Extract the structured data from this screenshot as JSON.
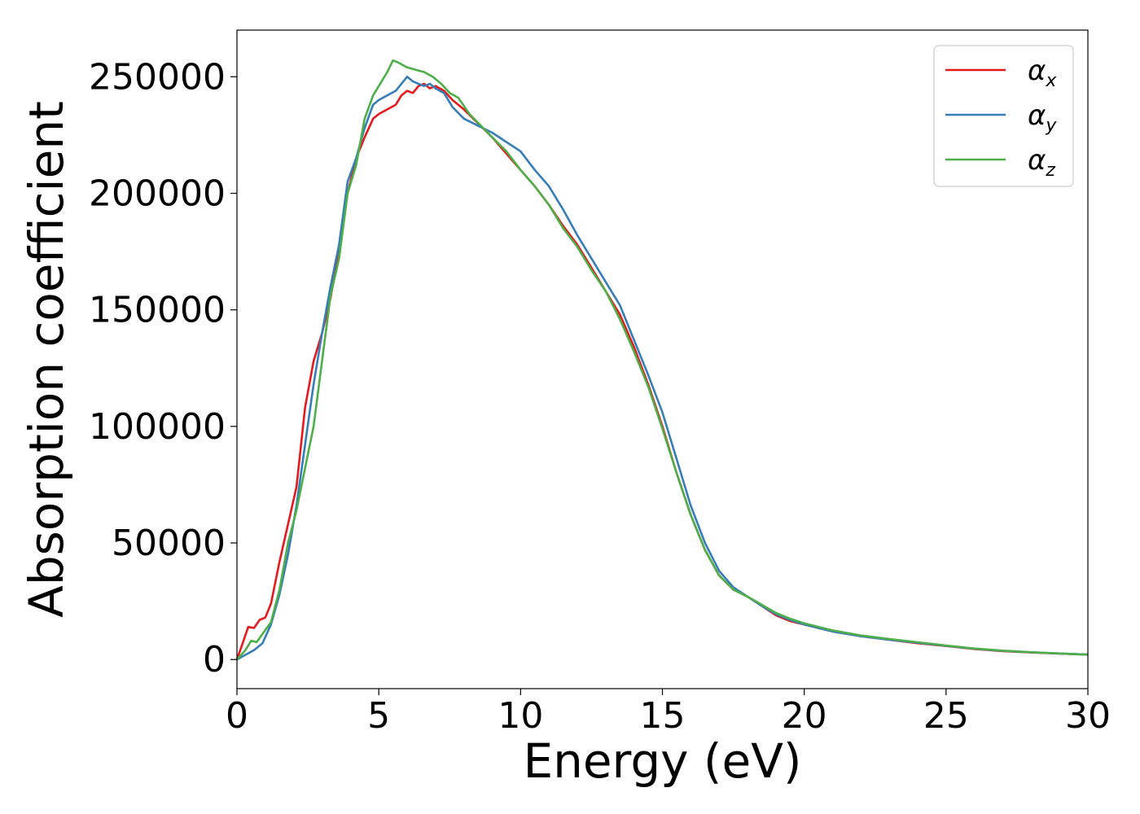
{
  "chart_data": {
    "type": "line",
    "xlabel": "Energy (eV)",
    "ylabel": "Absorption coefficient",
    "xlim": [
      0,
      30
    ],
    "ylim": [
      -12500,
      270000
    ],
    "xticks": [
      0,
      5,
      10,
      15,
      20,
      25,
      30
    ],
    "yticks": [
      0,
      50000,
      100000,
      150000,
      200000,
      250000
    ],
    "grid": false,
    "legend_position": "top-right",
    "series": [
      {
        "name": "α_x",
        "label_main": "α",
        "label_sub": "x",
        "color": "#e41a1c",
        "x": [
          0,
          0.2,
          0.4,
          0.6,
          0.8,
          1.0,
          1.2,
          1.5,
          1.8,
          2.1,
          2.4,
          2.7,
          3.0,
          3.3,
          3.6,
          3.9,
          4.2,
          4.5,
          4.8,
          5.0,
          5.3,
          5.6,
          5.8,
          6.0,
          6.2,
          6.4,
          6.6,
          6.8,
          7.0,
          7.3,
          7.6,
          8.0,
          8.5,
          9.0,
          9.5,
          10.0,
          10.5,
          11.0,
          11.5,
          12.0,
          12.5,
          13.0,
          13.5,
          14.0,
          14.5,
          15.0,
          15.5,
          16.0,
          16.5,
          17.0,
          17.5,
          18.0,
          18.5,
          19.0,
          19.5,
          20.0,
          21.0,
          22.0,
          23.0,
          24.0,
          25.0,
          26.0,
          27.0,
          28.0,
          29.0,
          30.0
        ],
        "y": [
          0,
          7000,
          14000,
          13500,
          17000,
          18000,
          24000,
          42000,
          58000,
          74000,
          108000,
          128000,
          140000,
          155000,
          176000,
          200000,
          215000,
          224000,
          232000,
          234000,
          236000,
          238000,
          242000,
          244000,
          243000,
          246000,
          247000,
          245000,
          246000,
          244000,
          240000,
          236000,
          230000,
          224000,
          217000,
          210000,
          203000,
          195000,
          186000,
          178000,
          168000,
          158000,
          148000,
          134000,
          118000,
          100000,
          80000,
          62000,
          47000,
          36000,
          30000,
          27000,
          23000,
          19000,
          16500,
          15000,
          12000,
          10000,
          8500,
          7000,
          5800,
          4500,
          3600,
          3000,
          2500,
          2100
        ]
      },
      {
        "name": "α_y",
        "label_main": "α",
        "label_sub": "y",
        "color": "#377eb8",
        "x": [
          0,
          0.3,
          0.6,
          0.9,
          1.2,
          1.5,
          1.8,
          2.1,
          2.4,
          2.7,
          3.0,
          3.3,
          3.6,
          3.9,
          4.2,
          4.5,
          4.8,
          5.0,
          5.3,
          5.6,
          5.8,
          6.0,
          6.2,
          6.4,
          6.6,
          6.8,
          7.0,
          7.3,
          7.6,
          8.0,
          8.5,
          9.0,
          9.5,
          10.0,
          10.5,
          11.0,
          11.5,
          12.0,
          12.5,
          13.0,
          13.5,
          14.0,
          14.5,
          15.0,
          15.5,
          16.0,
          16.5,
          17.0,
          17.5,
          18.0,
          18.5,
          19.0,
          19.5,
          20.0,
          21.0,
          22.0,
          23.0,
          24.0,
          25.0,
          26.0,
          27.0,
          28.0,
          29.0,
          30.0
        ],
        "y": [
          0,
          2000,
          4000,
          7000,
          15000,
          28000,
          45000,
          66000,
          92000,
          118000,
          140000,
          160000,
          178000,
          205000,
          215000,
          228000,
          238000,
          240000,
          242000,
          244000,
          247000,
          250000,
          248000,
          247000,
          246000,
          247000,
          245000,
          243000,
          237000,
          232000,
          229000,
          226000,
          222000,
          218000,
          210000,
          203000,
          193000,
          182000,
          172000,
          162000,
          152000,
          137000,
          122000,
          106000,
          86000,
          66000,
          50000,
          38000,
          31000,
          27000,
          23000,
          19500,
          17000,
          15000,
          12000,
          10000,
          8500,
          7200,
          5900,
          4600,
          3700,
          3100,
          2600,
          2100
        ]
      },
      {
        "name": "α_z",
        "label_main": "α",
        "label_sub": "z",
        "color": "#4daf4a",
        "x": [
          0,
          0.3,
          0.5,
          0.7,
          0.9,
          1.2,
          1.5,
          1.8,
          2.1,
          2.4,
          2.7,
          3.0,
          3.3,
          3.6,
          3.9,
          4.2,
          4.5,
          4.8,
          5.0,
          5.3,
          5.5,
          5.7,
          6.0,
          6.3,
          6.6,
          6.9,
          7.2,
          7.5,
          7.8,
          8.2,
          8.6,
          9.0,
          9.5,
          10.0,
          10.5,
          11.0,
          11.5,
          12.0,
          12.5,
          13.0,
          13.5,
          14.0,
          14.5,
          15.0,
          15.5,
          16.0,
          16.5,
          17.0,
          17.5,
          18.0,
          18.5,
          19.0,
          19.5,
          20.0,
          21.0,
          22.0,
          23.0,
          24.0,
          25.0,
          26.0,
          27.0,
          28.0,
          29.0,
          30.0
        ],
        "y": [
          0,
          4000,
          8000,
          7500,
          11000,
          16000,
          30000,
          50000,
          64000,
          82000,
          100000,
          128000,
          156000,
          172000,
          200000,
          212000,
          232000,
          242000,
          246000,
          252000,
          257000,
          256000,
          254000,
          253000,
          252000,
          250000,
          247000,
          243000,
          241000,
          234000,
          229000,
          224000,
          218000,
          210000,
          203000,
          195000,
          185000,
          177000,
          167000,
          158000,
          146000,
          132000,
          117000,
          99000,
          80000,
          62000,
          47000,
          36000,
          30000,
          27000,
          23500,
          20000,
          17500,
          15500,
          12500,
          10300,
          8800,
          7400,
          6000,
          4700,
          3800,
          3100,
          2600,
          2100
        ]
      }
    ]
  }
}
